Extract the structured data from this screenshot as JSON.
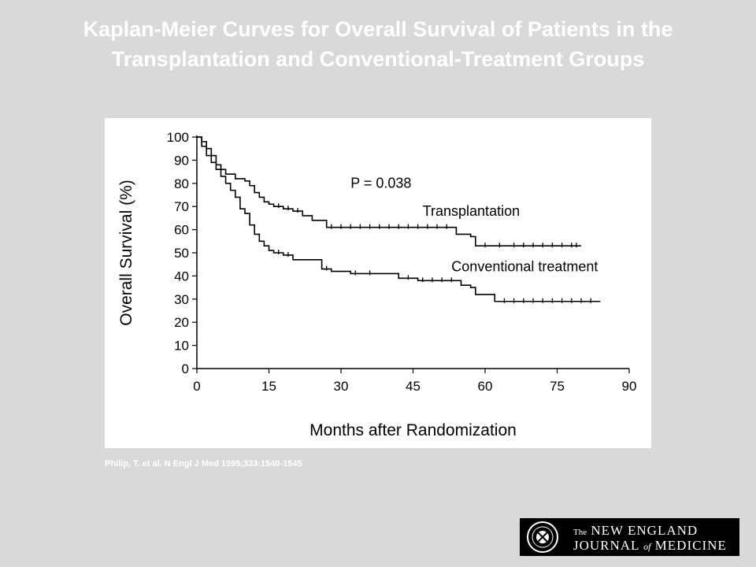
{
  "slide": {
    "title_line1": "Kaplan-Meier Curves for Overall Survival of Patients in the",
    "title_line2": "Transplantation and Conventional-Treatment Groups",
    "citation": "Philip, T. et al. N Engl J Med 1995;333:1540-1545"
  },
  "logo": {
    "the": "The",
    "line1": "NEW ENGLAND",
    "line2a": "JOURNAL",
    "of": "of",
    "line2b": "MEDICINE"
  },
  "colors": {
    "background": "#d9d9d9",
    "panel": "#ffffff",
    "ink": "#000000",
    "title": "#ffffff"
  },
  "chart_data": {
    "type": "line",
    "step": true,
    "title": "",
    "xlabel": "Months after Randomization",
    "ylabel": "Overall Survival (%)",
    "xlim": [
      0,
      90
    ],
    "ylim": [
      0,
      100
    ],
    "xticks": [
      0,
      15,
      30,
      45,
      60,
      75,
      90
    ],
    "yticks": [
      0,
      10,
      20,
      30,
      40,
      50,
      60,
      70,
      80,
      90,
      100
    ],
    "grid": false,
    "annotation": "P = 0.038",
    "series": [
      {
        "name": "Transplantation",
        "x": [
          0,
          1,
          2,
          3,
          4,
          5,
          6,
          8,
          10,
          11,
          12,
          13,
          14,
          15,
          16,
          18,
          20,
          22,
          24,
          27,
          35,
          45,
          54,
          57,
          58,
          62,
          80
        ],
        "y": [
          100,
          98,
          95,
          92,
          88,
          86,
          84,
          82,
          81,
          79,
          76,
          74,
          72,
          71,
          70,
          69,
          68,
          66,
          64,
          61,
          61,
          61,
          58,
          57,
          53,
          53,
          53
        ],
        "censored_x": [
          17,
          19,
          21,
          28,
          30,
          32,
          34,
          36,
          38,
          40,
          42,
          44,
          46,
          48,
          50,
          52,
          60,
          63,
          66,
          68,
          70,
          72,
          74,
          76,
          78,
          79
        ]
      },
      {
        "name": "Conventional treatment",
        "x": [
          0,
          1,
          2,
          3,
          4,
          5,
          6,
          7,
          8,
          9,
          10,
          11,
          12,
          13,
          14,
          15,
          16,
          18,
          20,
          26,
          28,
          32,
          42,
          46,
          55,
          57,
          58,
          62,
          84
        ],
        "y": [
          100,
          96,
          92,
          89,
          86,
          83,
          80,
          77,
          74,
          69,
          67,
          62,
          58,
          55,
          53,
          51,
          50,
          49,
          47,
          43,
          42,
          41,
          39,
          38,
          36,
          35,
          32,
          29,
          29
        ],
        "censored_x": [
          17,
          19,
          27,
          33,
          36,
          44,
          47,
          49,
          51,
          53,
          64,
          66,
          68,
          70,
          72,
          74,
          76,
          78,
          80,
          82
        ]
      }
    ]
  }
}
